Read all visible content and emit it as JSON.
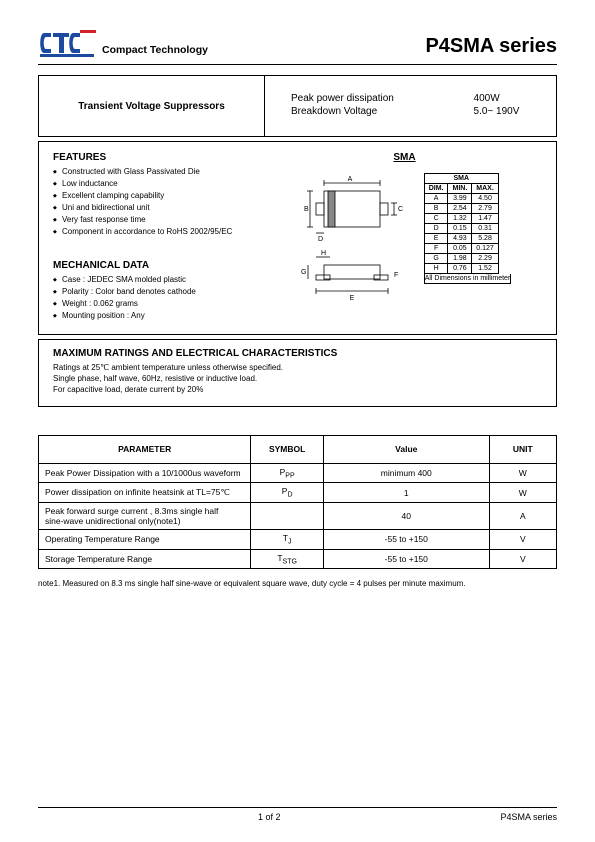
{
  "header": {
    "company": "Compact Technology",
    "series_title": "P4SMA series",
    "logo_colors": {
      "blue": "#1b4aa0",
      "red": "#d4232b"
    }
  },
  "title_box": {
    "left": "Transient Voltage Suppressors",
    "right_rows": [
      {
        "label": "Peak power dissipation",
        "value": "400W"
      },
      {
        "label": "Breakdown  Voltage",
        "value": "5.0~  190V"
      }
    ]
  },
  "features": {
    "heading": "FEATURES",
    "items": [
      "Constructed with Glass Passivated Die",
      "Low inductance",
      "Excellent clamping capability",
      "Uni and bidirectional unit",
      "Very fast response time",
      "Component in accordance to RoHS 2002/95/EC"
    ]
  },
  "mechanical": {
    "heading": "MECHANICAL DATA",
    "items": [
      "Case : JEDEC SMA molded plastic",
      "Polarity : Color band denotes cathode",
      "Weight :  0.062 grams",
      "Mounting position : Any"
    ]
  },
  "package": {
    "label": "SMA",
    "table_title": "SMA",
    "columns": [
      "DIM.",
      "MIN.",
      "MAX."
    ],
    "rows": [
      [
        "A",
        "3.99",
        "4.50"
      ],
      [
        "B",
        "2.54",
        "2.79"
      ],
      [
        "C",
        "1.32",
        "1.47"
      ],
      [
        "D",
        "0.15",
        "0.31"
      ],
      [
        "E",
        "4.93",
        "5.28"
      ],
      [
        "F",
        "0.05",
        "0.127"
      ],
      [
        "G",
        "1.98",
        "2.29"
      ],
      [
        "H",
        "0.76",
        "1.52"
      ]
    ],
    "caption": "All Dimensions in millimeter"
  },
  "characteristics": {
    "heading": "MAXIMUM RATINGS AND ELECTRICAL CHARACTERISTICS",
    "lines": [
      "Ratings at 25℃ ambient temperature unless otherwise specified.",
      "Single phase, half wave, 60Hz, resistive or inductive load.",
      "For capacitive load, derate current by 20%"
    ]
  },
  "param_table": {
    "headers": [
      "PARAMETER",
      "SYMBOL",
      "Value",
      "UNIT"
    ],
    "rows": [
      {
        "name": "Peak Power Dissipation with a 10/1000us waveform",
        "symbol": "P",
        "sub": "PP",
        "value": "minimum 400",
        "unit": "W"
      },
      {
        "name": "Power dissipation on infinite heatsink at TL=75℃",
        "symbol": "P",
        "sub": "D",
        "value": "1",
        "unit": "W"
      },
      {
        "name": "Peak forward surge current , 8.3ms single half\nsine-wave unidirectional only(note1)",
        "symbol": "",
        "sub": "",
        "value": "40",
        "unit": "A"
      },
      {
        "name": "Operating Temperature Range",
        "symbol": "T",
        "sub": "J",
        "value": "-55 to +150",
        "unit": "V"
      },
      {
        "name": "Storage Temperature Range",
        "symbol": "T",
        "sub": "STG",
        "value": "-55 to +150",
        "unit": "V"
      }
    ]
  },
  "note": "note1. Measured on 8.3 ms single half sine-wave or equivalent square wave, duty cycle = 4 pulses per minute maximum.",
  "footer": {
    "page": "1 of 2",
    "series": "P4SMA series"
  }
}
